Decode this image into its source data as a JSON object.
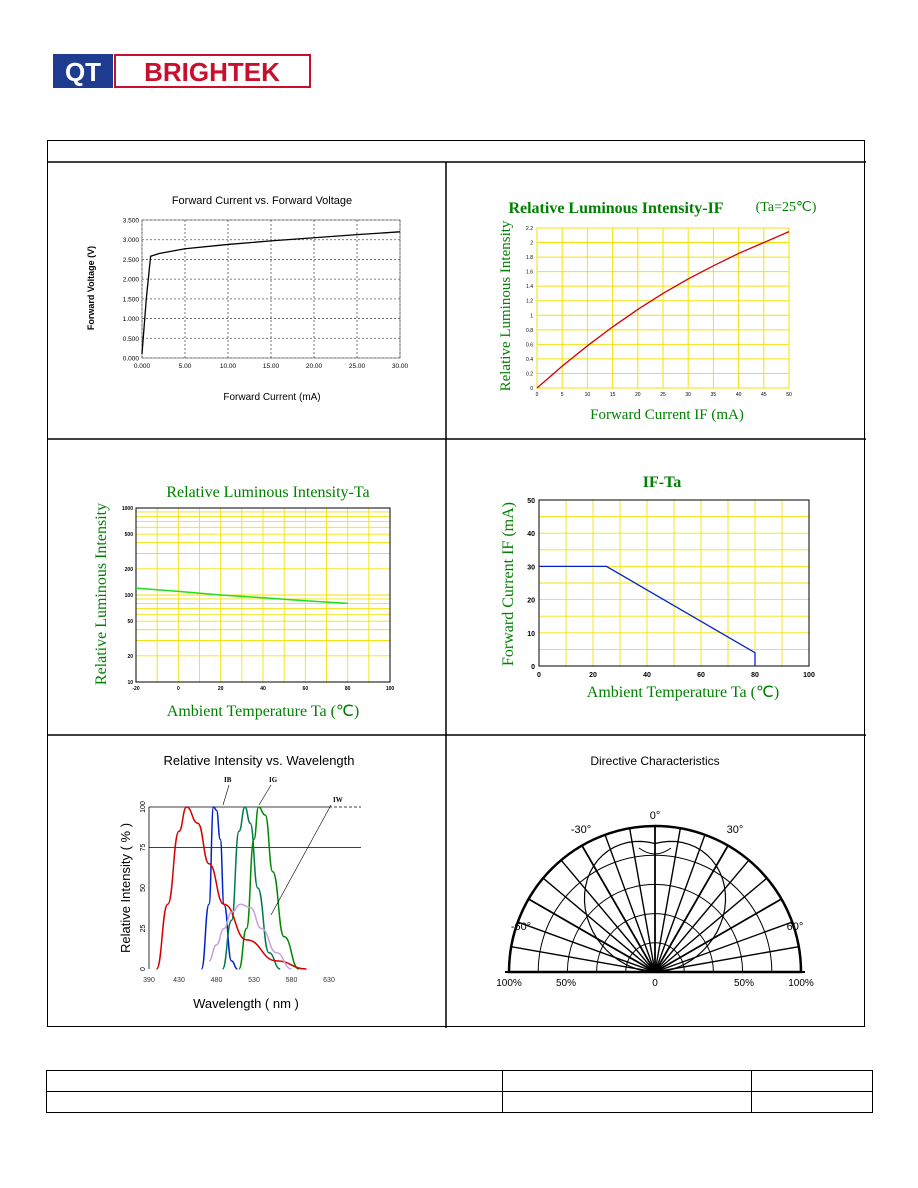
{
  "logo": {
    "part1": "QT",
    "part2": "BRIGHTEK",
    "color": "#c8102e"
  },
  "colors": {
    "grid_yellow": "#f2e20f",
    "red": "#d40000",
    "green": "#00cc00",
    "blue": "#0022cc",
    "title_green": "#008000"
  },
  "chart_data": [
    {
      "type": "line",
      "title": "Forward Current vs. Forward Voltage",
      "xlabel": "Forward Current (mA)",
      "ylabel": "Forward Voltage (V)",
      "xlim": [
        0,
        30
      ],
      "ylim": [
        0,
        3.5
      ],
      "x_ticks": [
        "0.000",
        "5.00",
        "10.00",
        "15.00",
        "20.00",
        "25.00",
        "30.00"
      ],
      "y_ticks": [
        "0.000",
        "0.500",
        "1.000",
        "1.500",
        "2.000",
        "2.500",
        "3.000",
        "3.500"
      ],
      "x": [
        0,
        0.5,
        1.0,
        2,
        5,
        10,
        15,
        20,
        25,
        30
      ],
      "y": [
        0.1,
        1.5,
        2.58,
        2.65,
        2.77,
        2.88,
        2.97,
        3.05,
        3.13,
        3.2
      ]
    },
    {
      "type": "line",
      "title": "Relative Luminous Intensity-IF",
      "title_suffix": "(Ta=25℃)",
      "xlabel": "Forward Current IF (mA)",
      "ylabel": "Relative Luminous Intensity",
      "xlim": [
        0,
        50
      ],
      "ylim": [
        0,
        2.2
      ],
      "x_ticks": [
        "0",
        "5",
        "10",
        "15",
        "20",
        "25",
        "30",
        "35",
        "40",
        "45",
        "50"
      ],
      "y_ticks": [
        "0",
        "0.2",
        "0.4",
        "0.6",
        "0.8",
        "1",
        "1.2",
        "1.4",
        "1.6",
        "1.8",
        "2",
        "2.2"
      ],
      "x": [
        0,
        5,
        10,
        15,
        20,
        25,
        30,
        35,
        40,
        45,
        50
      ],
      "y": [
        0,
        0.3,
        0.58,
        0.84,
        1.08,
        1.3,
        1.5,
        1.68,
        1.85,
        2.0,
        2.15
      ]
    },
    {
      "type": "line",
      "title": "Relative Luminous Intensity-Ta",
      "xlabel": "Ambient Temperature Ta (℃)",
      "ylabel": "Relative Luminous Intensity",
      "yscale": "log",
      "xlim": [
        -20,
        100
      ],
      "ylim": [
        10,
        1000
      ],
      "x_ticks": [
        "-20",
        "0",
        "20",
        "40",
        "60",
        "80",
        "100"
      ],
      "y_tick_values": [
        10,
        20,
        50,
        100,
        200,
        500,
        1000
      ],
      "y_ticks": [
        "10",
        "20",
        "50",
        "100",
        "200",
        "500",
        "1000"
      ],
      "x": [
        -20,
        0,
        20,
        40,
        60,
        80
      ],
      "y": [
        120,
        110,
        100,
        93,
        86,
        80
      ]
    },
    {
      "type": "line",
      "title": "IF-Ta",
      "xlabel": "Ambient Temperature Ta (℃)",
      "ylabel": "Forward Current IF (mA)",
      "xlim": [
        0,
        100
      ],
      "ylim": [
        0,
        50
      ],
      "x_ticks": [
        "0",
        "20",
        "40",
        "60",
        "80",
        "100"
      ],
      "y_ticks": [
        "0",
        "10",
        "20",
        "30",
        "40",
        "50"
      ],
      "x": [
        0,
        25,
        80,
        80
      ],
      "y": [
        30,
        30,
        4,
        0
      ]
    },
    {
      "type": "line",
      "title": "Relative Intensity vs. Wavelength",
      "xlabel": "Wavelength ( nm )",
      "ylabel": "Relative Intensity ( % )",
      "xlim": [
        390,
        630
      ],
      "ylim": [
        0,
        100
      ],
      "x_ticks": [
        "390",
        "430",
        "480",
        "530",
        "580",
        "630"
      ],
      "y_ticks": [
        "0",
        "25",
        "50",
        "75",
        "100"
      ],
      "series_labels": [
        "IB",
        "IG",
        "IW"
      ],
      "series": [
        {
          "name": "IB",
          "color": "#0022cc",
          "x": [
            460,
            470,
            476,
            480,
            485,
            490,
            500,
            508
          ],
          "y": [
            0,
            40,
            100,
            98,
            80,
            40,
            5,
            0
          ]
        },
        {
          "name": "IG",
          "color": "#007a4a",
          "x": [
            488,
            500,
            510,
            518,
            525,
            535,
            550,
            565
          ],
          "y": [
            0,
            30,
            85,
            100,
            90,
            50,
            10,
            0
          ]
        },
        {
          "name": "IG",
          "color": "#008800",
          "x": [
            510,
            520,
            530,
            536,
            545,
            555,
            570,
            590
          ],
          "y": [
            0,
            25,
            80,
            100,
            95,
            60,
            20,
            0
          ]
        },
        {
          "name": "IW",
          "color": "#d40000",
          "x": [
            400,
            415,
            430,
            440,
            455,
            470,
            490,
            520,
            560,
            600
          ],
          "y": [
            0,
            40,
            85,
            100,
            90,
            65,
            40,
            18,
            5,
            0
          ]
        },
        {
          "name": "IW",
          "color": "#c8a0e0",
          "x": [
            470,
            480,
            490,
            500,
            512,
            525,
            540,
            560,
            580
          ],
          "y": [
            5,
            15,
            25,
            35,
            40,
            38,
            25,
            10,
            0
          ]
        }
      ]
    },
    {
      "type": "polar",
      "title": "Directive Characteristics",
      "angle_labels": [
        "0°",
        "30°",
        "-30°",
        "60°",
        "-60°"
      ],
      "radial_labels": [
        "100%",
        "50%",
        "0",
        "50%",
        "100%"
      ]
    }
  ]
}
